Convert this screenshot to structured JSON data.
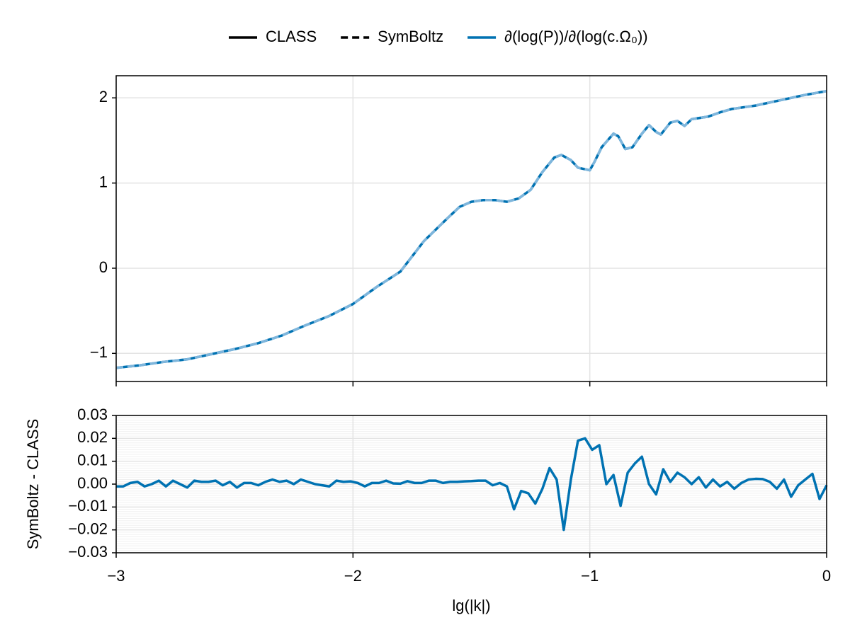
{
  "chart_data": [
    {
      "type": "line",
      "legend": [
        {
          "name": "CLASS",
          "color": "#000000",
          "dash": false
        },
        {
          "name": "SymBoltz",
          "color": "#000000",
          "dash": true
        },
        {
          "name": "∂(log(P))/∂(log(c.Ω₀))",
          "color": "#0072b2",
          "dash": false
        }
      ],
      "x": [
        -3,
        -2.9,
        -2.8,
        -2.7,
        -2.6,
        -2.5,
        -2.4,
        -2.3,
        -2.2,
        -2.1,
        -2,
        -1.9,
        -1.8,
        -1.7,
        -1.6,
        -1.55,
        -1.5,
        -1.45,
        -1.4,
        -1.35,
        -1.3,
        -1.25,
        -1.2,
        -1.15,
        -1.12,
        -1.08,
        -1.05,
        -1,
        -0.98,
        -0.95,
        -0.9,
        -0.88,
        -0.85,
        -0.82,
        -0.78,
        -0.75,
        -0.72,
        -0.7,
        -0.66,
        -0.63,
        -0.6,
        -0.57,
        -0.5,
        -0.45,
        -0.4,
        -0.3,
        -0.2,
        -0.1,
        0
      ],
      "series": [
        {
          "color": "#0072b2",
          "dash": false,
          "values": [
            -1.17,
            -1.14,
            -1.1,
            -1.07,
            -1.01,
            -0.95,
            -0.88,
            -0.79,
            -0.67,
            -0.56,
            -0.42,
            -0.22,
            -0.04,
            0.32,
            0.59,
            0.72,
            0.78,
            0.8,
            0.8,
            0.78,
            0.82,
            0.92,
            1.13,
            1.3,
            1.33,
            1.27,
            1.18,
            1.15,
            1.25,
            1.42,
            1.58,
            1.55,
            1.4,
            1.42,
            1.58,
            1.68,
            1.6,
            1.57,
            1.71,
            1.73,
            1.67,
            1.75,
            1.78,
            1.83,
            1.87,
            1.91,
            1.97,
            2.03,
            2.08
          ]
        },
        {
          "color": "#7fb6dc",
          "dash": true,
          "values": [
            -1.17,
            -1.14,
            -1.1,
            -1.07,
            -1.01,
            -0.95,
            -0.88,
            -0.79,
            -0.67,
            -0.56,
            -0.42,
            -0.22,
            -0.04,
            0.32,
            0.59,
            0.72,
            0.78,
            0.8,
            0.8,
            0.78,
            0.82,
            0.92,
            1.13,
            1.3,
            1.33,
            1.27,
            1.18,
            1.15,
            1.25,
            1.42,
            1.58,
            1.55,
            1.4,
            1.42,
            1.58,
            1.68,
            1.6,
            1.57,
            1.71,
            1.73,
            1.67,
            1.75,
            1.78,
            1.83,
            1.87,
            1.91,
            1.97,
            2.03,
            2.08
          ]
        }
      ],
      "xlim": [
        -3,
        0
      ],
      "xticks": [
        -3,
        -2,
        -1,
        0
      ],
      "ylim": [
        -1.33,
        2.26
      ],
      "yticks": [
        {
          "value": -1,
          "label": "−1"
        },
        0,
        1,
        2
      ],
      "grid": true
    },
    {
      "type": "line",
      "xlabel": "lg(|k|)",
      "ylabel": "SymBoltz - CLASS",
      "x": [
        -3,
        -2.97,
        -2.94,
        -2.91,
        -2.88,
        -2.85,
        -2.82,
        -2.79,
        -2.76,
        -2.73,
        -2.7,
        -2.67,
        -2.64,
        -2.61,
        -2.58,
        -2.55,
        -2.52,
        -2.49,
        -2.46,
        -2.43,
        -2.4,
        -2.37,
        -2.34,
        -2.31,
        -2.28,
        -2.25,
        -2.22,
        -2.19,
        -2.16,
        -2.13,
        -2.1,
        -2.07,
        -2.04,
        -2.01,
        -1.98,
        -1.95,
        -1.92,
        -1.89,
        -1.86,
        -1.83,
        -1.8,
        -1.77,
        -1.74,
        -1.71,
        -1.68,
        -1.65,
        -1.62,
        -1.59,
        -1.56,
        -1.53,
        -1.5,
        -1.47,
        -1.44,
        -1.41,
        -1.38,
        -1.35,
        -1.32,
        -1.29,
        -1.26,
        -1.23,
        -1.2,
        -1.17,
        -1.14,
        -1.11,
        -1.08,
        -1.05,
        -1.02,
        -0.99,
        -0.96,
        -0.93,
        -0.9,
        -0.87,
        -0.84,
        -0.81,
        -0.78,
        -0.75,
        -0.72,
        -0.69,
        -0.66,
        -0.63,
        -0.6,
        -0.57,
        -0.54,
        -0.51,
        -0.48,
        -0.45,
        -0.42,
        -0.39,
        -0.36,
        -0.33,
        -0.3,
        -0.27,
        -0.24,
        -0.21,
        -0.18,
        -0.15,
        -0.12,
        -0.09,
        -0.06,
        -0.03,
        0
      ],
      "series": [
        {
          "color": "#0072b2",
          "values": [
            -0.001,
            -0.001,
            0.0005,
            0.001,
            -0.001,
            0,
            0.0015,
            -0.001,
            0.0015,
            0,
            -0.0015,
            0.0015,
            0.001,
            0.001,
            0.0015,
            -0.0005,
            0.001,
            -0.0015,
            0.0005,
            0.0005,
            -0.0005,
            0.001,
            0.002,
            0.001,
            0.0015,
            0,
            0.002,
            0.001,
            0,
            -0.0005,
            -0.001,
            0.0015,
            0.001,
            0.0012,
            0.0005,
            -0.001,
            0.0005,
            0.0005,
            0.0015,
            0.0003,
            0.0002,
            0.0013,
            0.0005,
            0.0005,
            0.0015,
            0.0015,
            0.0005,
            0.001,
            0.001,
            0.0012,
            0.0013,
            0.0015,
            0.0015,
            -0.0005,
            0.0005,
            -0.001,
            -0.011,
            -0.003,
            -0.004,
            -0.0085,
            -0.002,
            0.007,
            0.002,
            -0.02,
            0.002,
            0.019,
            0.02,
            0.015,
            0.017,
            0,
            0.004,
            -0.0095,
            0.005,
            0.009,
            0.012,
            0,
            -0.0045,
            0.0065,
            0.001,
            0.005,
            0.003,
            0,
            0.003,
            -0.0015,
            0.002,
            -0.001,
            0.001,
            -0.002,
            0.0005,
            0.002,
            0.0023,
            0.0022,
            0.001,
            -0.002,
            0.002,
            -0.0055,
            -0.0005,
            0.002,
            0.0045,
            -0.0065,
            -0.0005
          ]
        }
      ],
      "xlim": [
        -3,
        0
      ],
      "xticks": [
        {
          "value": -3,
          "label": "−3"
        },
        {
          "value": -2,
          "label": "−2"
        },
        {
          "value": -1,
          "label": "−1"
        },
        0
      ],
      "ylim": [
        -0.03,
        0.03
      ],
      "yticks": [
        {
          "value": -0.03,
          "label": "−0.03"
        },
        {
          "value": -0.02,
          "label": "−0.02"
        },
        {
          "value": -0.01,
          "label": "−0.01"
        },
        {
          "value": 0,
          "label": "0.00"
        },
        0.01,
        0.02,
        0.03
      ],
      "grid": true
    }
  ]
}
